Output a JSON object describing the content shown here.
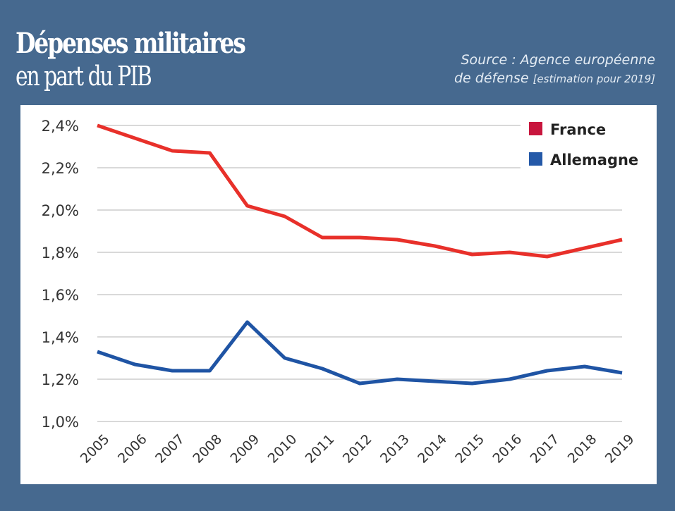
{
  "header": {
    "title_line1": "Dépenses militaires",
    "title_line2": "en part du PIB",
    "source_line1": "Source : Agence européenne",
    "source_line2_main": "de défense",
    "source_line2_note": "[estimation pour 2019]"
  },
  "colors": {
    "background": "#46698f",
    "france": "#e8302a",
    "allemagne": "#1f54a4",
    "legend_france": "#c8163e",
    "legend_allemagne": "#2459a8",
    "grid": "#d9d9d9"
  },
  "chart_data": {
    "type": "line",
    "title": "Dépenses militaires en part du PIB",
    "xlabel": "",
    "ylabel": "",
    "x": [
      "2005",
      "2006",
      "2007",
      "2008",
      "2009",
      "2010",
      "2011",
      "2012",
      "2013",
      "2014",
      "2015",
      "2016",
      "2017",
      "2018",
      "2019"
    ],
    "ylim": [
      1.0,
      2.4
    ],
    "yticks": [
      1.0,
      1.2,
      1.4,
      1.6,
      1.8,
      2.0,
      2.2,
      2.4
    ],
    "ytick_labels": [
      "1,0%",
      "1,2%",
      "1,4%",
      "1,6%",
      "1,8%",
      "2,0%",
      "2,2%",
      "2,4%"
    ],
    "grid": true,
    "legend_position": "top-right",
    "series": [
      {
        "name": "France",
        "values": [
          2.4,
          2.34,
          2.28,
          2.27,
          2.02,
          1.97,
          1.87,
          1.87,
          1.86,
          1.83,
          1.79,
          1.8,
          1.78,
          1.82,
          1.86
        ]
      },
      {
        "name": "Allemagne",
        "values": [
          1.33,
          1.27,
          1.24,
          1.24,
          1.47,
          1.3,
          1.25,
          1.18,
          1.2,
          1.19,
          1.18,
          1.2,
          1.24,
          1.26,
          1.23
        ]
      }
    ]
  }
}
